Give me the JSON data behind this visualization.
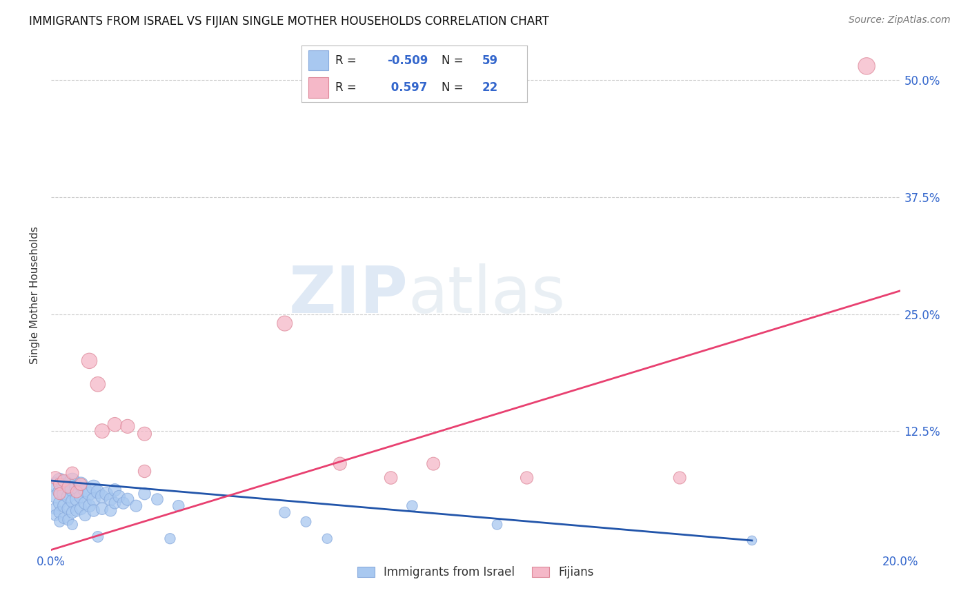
{
  "title": "IMMIGRANTS FROM ISRAEL VS FIJIAN SINGLE MOTHER HOUSEHOLDS CORRELATION CHART",
  "source": "Source: ZipAtlas.com",
  "ylabel": "Single Mother Households",
  "xlim": [
    0.0,
    0.2
  ],
  "ylim": [
    -0.005,
    0.545
  ],
  "xticks": [
    0.0,
    0.05,
    0.1,
    0.15,
    0.2
  ],
  "yticks": [
    0.0,
    0.125,
    0.25,
    0.375,
    0.5
  ],
  "ytick_labels": [
    "",
    "12.5%",
    "25.0%",
    "37.5%",
    "50.0%"
  ],
  "xtick_labels": [
    "0.0%",
    "",
    "",
    "",
    "20.0%"
  ],
  "legend_blue_label": "Immigrants from Israel",
  "legend_pink_label": "Fijians",
  "R_blue": -0.509,
  "N_blue": 59,
  "R_pink": 0.597,
  "N_pink": 22,
  "blue_color": "#A8C8F0",
  "pink_color": "#F5B8C8",
  "blue_line_color": "#2255AA",
  "pink_line_color": "#E84070",
  "blue_line": [
    [
      0.0,
      0.072
    ],
    [
      0.165,
      0.008
    ]
  ],
  "pink_line": [
    [
      0.0,
      -0.002
    ],
    [
      0.2,
      0.275
    ]
  ],
  "blue_points": [
    [
      0.001,
      0.068
    ],
    [
      0.001,
      0.055
    ],
    [
      0.001,
      0.042
    ],
    [
      0.001,
      0.035
    ],
    [
      0.002,
      0.072
    ],
    [
      0.002,
      0.06
    ],
    [
      0.002,
      0.048
    ],
    [
      0.002,
      0.038
    ],
    [
      0.002,
      0.028
    ],
    [
      0.003,
      0.07
    ],
    [
      0.003,
      0.058
    ],
    [
      0.003,
      0.045
    ],
    [
      0.003,
      0.032
    ],
    [
      0.004,
      0.068
    ],
    [
      0.004,
      0.055
    ],
    [
      0.004,
      0.042
    ],
    [
      0.004,
      0.03
    ],
    [
      0.005,
      0.072
    ],
    [
      0.005,
      0.062
    ],
    [
      0.005,
      0.05
    ],
    [
      0.005,
      0.038
    ],
    [
      0.005,
      0.025
    ],
    [
      0.006,
      0.065
    ],
    [
      0.006,
      0.052
    ],
    [
      0.006,
      0.04
    ],
    [
      0.007,
      0.068
    ],
    [
      0.007,
      0.055
    ],
    [
      0.007,
      0.042
    ],
    [
      0.008,
      0.062
    ],
    [
      0.008,
      0.048
    ],
    [
      0.008,
      0.035
    ],
    [
      0.009,
      0.058
    ],
    [
      0.009,
      0.045
    ],
    [
      0.01,
      0.065
    ],
    [
      0.01,
      0.052
    ],
    [
      0.01,
      0.04
    ],
    [
      0.011,
      0.06
    ],
    [
      0.011,
      0.012
    ],
    [
      0.012,
      0.055
    ],
    [
      0.012,
      0.042
    ],
    [
      0.013,
      0.058
    ],
    [
      0.014,
      0.052
    ],
    [
      0.014,
      0.04
    ],
    [
      0.015,
      0.062
    ],
    [
      0.015,
      0.048
    ],
    [
      0.016,
      0.055
    ],
    [
      0.017,
      0.048
    ],
    [
      0.018,
      0.052
    ],
    [
      0.02,
      0.045
    ],
    [
      0.022,
      0.058
    ],
    [
      0.025,
      0.052
    ],
    [
      0.028,
      0.01
    ],
    [
      0.03,
      0.045
    ],
    [
      0.055,
      0.038
    ],
    [
      0.06,
      0.028
    ],
    [
      0.065,
      0.01
    ],
    [
      0.085,
      0.045
    ],
    [
      0.105,
      0.025
    ],
    [
      0.165,
      0.008
    ]
  ],
  "pink_points": [
    [
      0.001,
      0.075
    ],
    [
      0.002,
      0.068
    ],
    [
      0.002,
      0.058
    ],
    [
      0.003,
      0.072
    ],
    [
      0.004,
      0.065
    ],
    [
      0.005,
      0.08
    ],
    [
      0.006,
      0.06
    ],
    [
      0.007,
      0.068
    ],
    [
      0.009,
      0.2
    ],
    [
      0.011,
      0.175
    ],
    [
      0.012,
      0.125
    ],
    [
      0.015,
      0.132
    ],
    [
      0.018,
      0.13
    ],
    [
      0.022,
      0.122
    ],
    [
      0.022,
      0.082
    ],
    [
      0.055,
      0.24
    ],
    [
      0.068,
      0.09
    ],
    [
      0.08,
      0.075
    ],
    [
      0.09,
      0.09
    ],
    [
      0.112,
      0.075
    ],
    [
      0.148,
      0.075
    ],
    [
      0.192,
      0.515
    ]
  ],
  "blue_sizes": [
    220,
    180,
    150,
    130,
    240,
    200,
    170,
    145,
    120,
    230,
    195,
    165,
    135,
    225,
    190,
    160,
    130,
    245,
    210,
    178,
    148,
    118,
    215,
    182,
    152,
    228,
    192,
    162,
    205,
    172,
    142,
    198,
    168,
    222,
    188,
    158,
    195,
    130,
    185,
    155,
    182,
    175,
    148,
    170,
    145,
    162,
    155,
    168,
    150,
    160,
    145,
    120,
    140,
    130,
    115,
    105,
    125,
    110,
    95
  ],
  "pink_sizes": [
    180,
    165,
    155,
    170,
    160,
    175,
    158,
    165,
    260,
    240,
    225,
    215,
    210,
    205,
    175,
    250,
    190,
    178,
    185,
    172,
    168,
    310
  ]
}
